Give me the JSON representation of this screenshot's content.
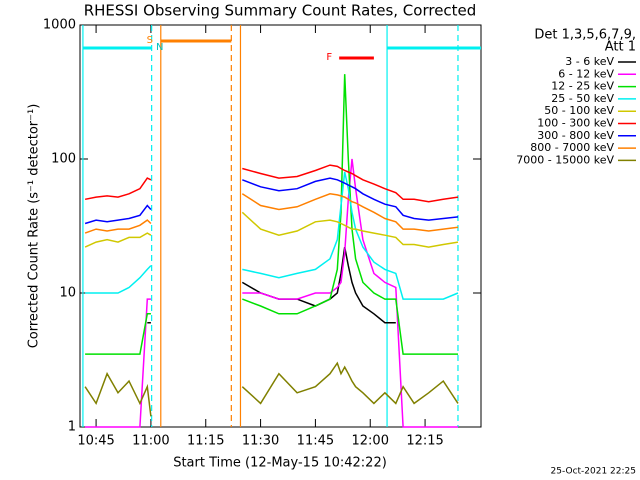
{
  "chart_data": {
    "type": "line",
    "title": "RHESSI Observing Summary Count Rates, Corrected",
    "xlabel": "Start Time (12-May-15 10:42:22)",
    "ylabel": "Corrected Count Rate (s⁻¹ detector⁻¹)",
    "legend_title": [
      "Det 1,3,5,6,7,9,",
      "Att 1"
    ],
    "footer": "25-Oct-2021 22:25",
    "log_y": true,
    "xlim": [
      40.6,
      150.3
    ],
    "xticks": [
      {
        "value": 45,
        "label": "10:45"
      },
      {
        "value": 60,
        "label": "11:00"
      },
      {
        "value": 75,
        "label": "11:15"
      },
      {
        "value": 90,
        "label": "11:30"
      },
      {
        "value": 105,
        "label": "11:45"
      },
      {
        "value": 120,
        "label": "12:00"
      },
      {
        "value": 135,
        "label": "12:15"
      }
    ],
    "ylim": [
      1,
      1000
    ],
    "yticks": [
      1,
      10,
      100,
      1000
    ],
    "x": [
      42,
      45,
      48,
      51,
      54,
      57,
      59,
      60,
      62,
      85,
      90,
      95,
      100,
      105,
      109,
      111,
      112,
      113,
      114,
      115,
      116,
      118,
      121,
      124,
      127,
      129,
      132,
      136,
      140,
      144
    ],
    "series": [
      {
        "name": "3 - 6 keV",
        "color": "#000000",
        "values": [
          null,
          null,
          null,
          null,
          null,
          null,
          6,
          6,
          null,
          12,
          10,
          9,
          9,
          8,
          9,
          10,
          14,
          22,
          16,
          12,
          10,
          8,
          7,
          6,
          6,
          null,
          null,
          null,
          null,
          null
        ]
      },
      {
        "name": "6 - 12 keV",
        "color": "#ff00ff",
        "values": [
          1,
          1,
          1,
          1,
          1,
          1,
          9,
          9,
          null,
          10,
          10,
          9,
          9,
          10,
          10,
          11,
          12,
          20,
          50,
          100,
          60,
          25,
          14,
          12,
          11,
          1,
          1,
          1,
          1,
          1
        ]
      },
      {
        "name": "12 - 25 keV",
        "color": "#00e000",
        "values": [
          3.5,
          3.5,
          3.5,
          3.5,
          3.5,
          3.5,
          7,
          7,
          null,
          9,
          8,
          7,
          7,
          8,
          9,
          15,
          40,
          430,
          100,
          30,
          18,
          12,
          10,
          9,
          9,
          3.5,
          3.5,
          3.5,
          3.5,
          3.5
        ]
      },
      {
        "name": "25 - 50 keV",
        "color": "#00f0f0",
        "values": [
          10,
          10,
          10,
          10,
          11,
          13,
          15,
          16,
          null,
          15,
          14,
          13,
          14,
          15,
          18,
          25,
          45,
          80,
          60,
          40,
          30,
          22,
          17,
          15,
          14,
          9,
          9,
          9,
          9,
          10
        ]
      },
      {
        "name": "50 - 100 keV",
        "color": "#d0c800",
        "values": [
          22,
          24,
          25,
          24,
          26,
          26,
          28,
          27,
          null,
          40,
          30,
          27,
          29,
          34,
          35,
          34,
          33,
          32,
          31,
          30,
          30,
          29,
          28,
          27,
          26,
          23,
          23,
          22,
          23,
          24
        ]
      },
      {
        "name": "100 - 300 keV",
        "color": "#ff0000",
        "values": [
          50,
          52,
          53,
          52,
          55,
          60,
          72,
          70,
          null,
          85,
          78,
          72,
          74,
          82,
          90,
          88,
          85,
          82,
          80,
          78,
          75,
          70,
          65,
          60,
          56,
          50,
          50,
          48,
          50,
          52
        ]
      },
      {
        "name": "300 - 800 keV",
        "color": "#0000ff",
        "values": [
          33,
          35,
          34,
          35,
          36,
          38,
          45,
          42,
          null,
          70,
          62,
          58,
          60,
          68,
          72,
          70,
          68,
          66,
          64,
          62,
          60,
          55,
          50,
          46,
          44,
          38,
          36,
          35,
          36,
          37
        ]
      },
      {
        "name": "800 - 7000 keV",
        "color": "#ff8000",
        "values": [
          28,
          30,
          29,
          30,
          30,
          32,
          35,
          33,
          null,
          55,
          45,
          42,
          44,
          50,
          55,
          54,
          53,
          52,
          50,
          48,
          47,
          44,
          40,
          36,
          34,
          30,
          30,
          29,
          30,
          31
        ]
      },
      {
        "name": "7000 - 15000 keV",
        "color": "#808000",
        "values": [
          2,
          1.5,
          2.5,
          1.8,
          2.2,
          1.5,
          2,
          1.2,
          null,
          2,
          1.5,
          2.5,
          1.8,
          2,
          2.5,
          3,
          2.5,
          2.8,
          2.5,
          2.2,
          2,
          1.8,
          1.5,
          1.8,
          1.5,
          2,
          1.5,
          1.8,
          2.2,
          1.5
        ]
      }
    ],
    "vlines": [
      {
        "x": 41.4,
        "color": "#00f0f0",
        "style": "solid"
      },
      {
        "x": 60.2,
        "color": "#00f0f0",
        "style": "dashed"
      },
      {
        "x": 62.7,
        "color": "#ff8000",
        "style": "solid"
      },
      {
        "x": 82.0,
        "color": "#ff8000",
        "style": "dashed"
      },
      {
        "x": 84.5,
        "color": "#ff8000",
        "style": "solid"
      },
      {
        "x": 124.6,
        "color": "#00f0f0",
        "style": "solid"
      },
      {
        "x": 144.0,
        "color": "#00f0f0",
        "style": "dashed"
      }
    ],
    "bars": [
      {
        "x": [
          41.4,
          60.2
        ],
        "y": 673,
        "color": "#00f0f0"
      },
      {
        "x": [
          62.7,
          82.0
        ],
        "y": 760,
        "color": "#ff8000"
      },
      {
        "x": [
          111.5,
          121.0
        ],
        "y": 567,
        "color": "#ff0000"
      },
      {
        "x": [
          124.6,
          150.3
        ],
        "y": 673,
        "color": "#00f0f0"
      }
    ],
    "annotations": [
      {
        "text": "S",
        "x": 59.7,
        "y": 773,
        "color": "#ff8000"
      },
      {
        "text": "N",
        "x": 62.4,
        "y": 685,
        "color": "#00c0c0"
      },
      {
        "text": "F",
        "x": 108.8,
        "y": 577,
        "color": "#ff0000"
      }
    ]
  }
}
